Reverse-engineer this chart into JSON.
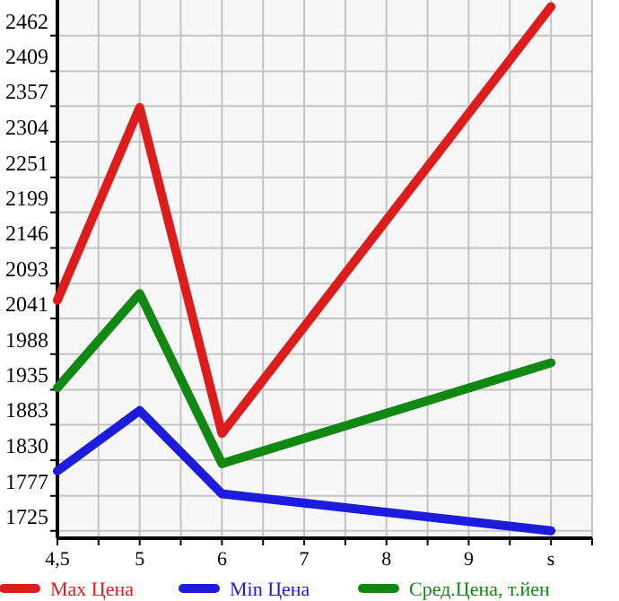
{
  "chart_data": {
    "type": "line",
    "categories": [
      "4,5",
      "5",
      "6",
      "7",
      "8",
      "9",
      "s"
    ],
    "series": [
      {
        "name": "Max Цена",
        "color": "#dd1c1c",
        "values": [
          2068,
          2355,
          1870,
          null,
          null,
          null,
          2505
        ]
      },
      {
        "name": "Min Цена",
        "color": "#1c1cdd",
        "values": [
          1814,
          1904,
          1780,
          null,
          null,
          null,
          1725
        ]
      },
      {
        "name": "Сред.Цена, т.йен",
        "color": "#118811",
        "values": [
          1938,
          2078,
          1825,
          null,
          null,
          null,
          1975
        ]
      }
    ],
    "ylim": [
      1714,
      2515
    ],
    "yticks": [
      1725,
      1777,
      1830,
      1883,
      1935,
      1988,
      2041,
      2093,
      2146,
      2199,
      2251,
      2304,
      2357,
      2409,
      2462
    ],
    "grid": true,
    "legend": "bottom",
    "marker": "none",
    "line_style": "solid"
  }
}
